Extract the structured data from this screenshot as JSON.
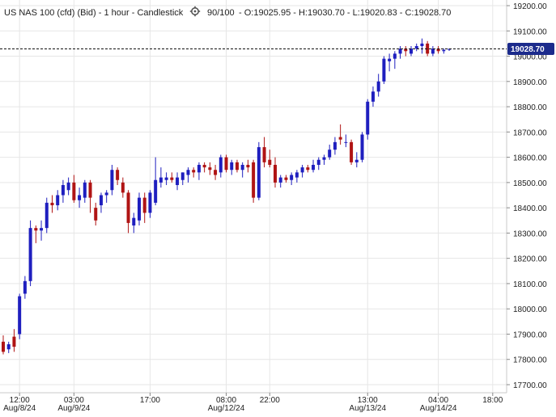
{
  "header": {
    "instrument": "US NAS 100 (cfd) (Bid) - 1 hour - Candlestick",
    "gear_icon": "gear-icon",
    "count": "90/100",
    "ohlc": "- O:19025.95 - H:19030.70 - L:19020.83 - C:19028.70"
  },
  "colors": {
    "up": "#1f1fbf",
    "down": "#b01414",
    "grid": "#e6e6e6",
    "price_tag_bg": "#1c2b8c"
  },
  "chart_data": {
    "type": "candlestick",
    "ylim": [
      17650,
      19225
    ],
    "yticks": [
      17700,
      17800,
      17900,
      18000,
      18100,
      18200,
      18300,
      18400,
      18500,
      18600,
      18700,
      18800,
      18900,
      19000,
      19100,
      19200
    ],
    "ytick_labels": [
      "17700.00",
      "17800.00",
      "17900.00",
      "18000.00",
      "18100.00",
      "18200.00",
      "18300.00",
      "18400.00",
      "18500.00",
      "18600.00",
      "18700.00",
      "18800.00",
      "18900.00",
      "19000.00",
      "19100.00",
      "19200.00"
    ],
    "xticks": [
      {
        "time": "12:00",
        "date": "Aug/8/24"
      },
      {
        "time": "03:00",
        "date": "Aug/9/24"
      },
      {
        "time": "17:00",
        "date": ""
      },
      {
        "time": "08:00",
        "date": "Aug/12/24"
      },
      {
        "time": "22:00",
        "date": ""
      },
      {
        "time": "13:00",
        "date": "Aug/13/24"
      },
      {
        "time": "04:00",
        "date": "Aug/14/24"
      },
      {
        "time": "18:00",
        "date": ""
      }
    ],
    "last_price": 19028.7,
    "last_price_label": "19028.70",
    "candles": [
      {
        "o": 17870,
        "h": 17895,
        "l": 17820,
        "c": 17830
      },
      {
        "o": 17840,
        "h": 17870,
        "l": 17825,
        "c": 17860
      },
      {
        "o": 17890,
        "h": 17920,
        "l": 17830,
        "c": 17850
      },
      {
        "o": 17900,
        "h": 18060,
        "l": 17880,
        "c": 18050
      },
      {
        "o": 18060,
        "h": 18130,
        "l": 18040,
        "c": 18110
      },
      {
        "o": 18110,
        "h": 18350,
        "l": 18090,
        "c": 18320
      },
      {
        "o": 18320,
        "h": 18330,
        "l": 18260,
        "c": 18310
      },
      {
        "o": 18310,
        "h": 18350,
        "l": 18270,
        "c": 18320
      },
      {
        "o": 18320,
        "h": 18440,
        "l": 18300,
        "c": 18420
      },
      {
        "o": 18420,
        "h": 18450,
        "l": 18380,
        "c": 18410
      },
      {
        "o": 18410,
        "h": 18470,
        "l": 18390,
        "c": 18450
      },
      {
        "o": 18450,
        "h": 18510,
        "l": 18420,
        "c": 18490
      },
      {
        "o": 18470,
        "h": 18520,
        "l": 18450,
        "c": 18500
      },
      {
        "o": 18500,
        "h": 18530,
        "l": 18420,
        "c": 18430
      },
      {
        "o": 18430,
        "h": 18480,
        "l": 18400,
        "c": 18450
      },
      {
        "o": 18440,
        "h": 18510,
        "l": 18420,
        "c": 18500
      },
      {
        "o": 18500,
        "h": 18510,
        "l": 18380,
        "c": 18440
      },
      {
        "o": 18400,
        "h": 18420,
        "l": 18330,
        "c": 18350
      },
      {
        "o": 18410,
        "h": 18460,
        "l": 18380,
        "c": 18450
      },
      {
        "o": 18450,
        "h": 18470,
        "l": 18420,
        "c": 18460
      },
      {
        "o": 18470,
        "h": 18570,
        "l": 18450,
        "c": 18550
      },
      {
        "o": 18550,
        "h": 18560,
        "l": 18490,
        "c": 18510
      },
      {
        "o": 18500,
        "h": 18520,
        "l": 18440,
        "c": 18460
      },
      {
        "o": 18460,
        "h": 18470,
        "l": 18300,
        "c": 18340
      },
      {
        "o": 18330,
        "h": 18380,
        "l": 18300,
        "c": 18360
      },
      {
        "o": 18350,
        "h": 18460,
        "l": 18330,
        "c": 18440
      },
      {
        "o": 18440,
        "h": 18460,
        "l": 18340,
        "c": 18380
      },
      {
        "o": 18380,
        "h": 18470,
        "l": 18360,
        "c": 18460
      },
      {
        "o": 18420,
        "h": 18600,
        "l": 18410,
        "c": 18510
      },
      {
        "o": 18500,
        "h": 18560,
        "l": 18480,
        "c": 18520
      },
      {
        "o": 18510,
        "h": 18540,
        "l": 18490,
        "c": 18520
      },
      {
        "o": 18520,
        "h": 18540,
        "l": 18500,
        "c": 18510
      },
      {
        "o": 18490,
        "h": 18540,
        "l": 18470,
        "c": 18520
      },
      {
        "o": 18510,
        "h": 18540,
        "l": 18490,
        "c": 18540
      },
      {
        "o": 18530,
        "h": 18560,
        "l": 18500,
        "c": 18550
      },
      {
        "o": 18550,
        "h": 18560,
        "l": 18520,
        "c": 18540
      },
      {
        "o": 18540,
        "h": 18580,
        "l": 18510,
        "c": 18570
      },
      {
        "o": 18570,
        "h": 18580,
        "l": 18540,
        "c": 18560
      },
      {
        "o": 18560,
        "h": 18580,
        "l": 18530,
        "c": 18550
      },
      {
        "o": 18550,
        "h": 18570,
        "l": 18510,
        "c": 18530
      },
      {
        "o": 18540,
        "h": 18610,
        "l": 18520,
        "c": 18600
      },
      {
        "o": 18600,
        "h": 18610,
        "l": 18540,
        "c": 18550
      },
      {
        "o": 18550,
        "h": 18590,
        "l": 18530,
        "c": 18580
      },
      {
        "o": 18580,
        "h": 18590,
        "l": 18540,
        "c": 18550
      },
      {
        "o": 18550,
        "h": 18580,
        "l": 18520,
        "c": 18570
      },
      {
        "o": 18570,
        "h": 18590,
        "l": 18540,
        "c": 18560
      },
      {
        "o": 18580,
        "h": 18590,
        "l": 18420,
        "c": 18440
      },
      {
        "o": 18440,
        "h": 18660,
        "l": 18430,
        "c": 18640
      },
      {
        "o": 18640,
        "h": 18680,
        "l": 18560,
        "c": 18580
      },
      {
        "o": 18590,
        "h": 18630,
        "l": 18560,
        "c": 18570
      },
      {
        "o": 18570,
        "h": 18600,
        "l": 18480,
        "c": 18500
      },
      {
        "o": 18500,
        "h": 18530,
        "l": 18480,
        "c": 18520
      },
      {
        "o": 18520,
        "h": 18530,
        "l": 18500,
        "c": 18510
      },
      {
        "o": 18510,
        "h": 18540,
        "l": 18490,
        "c": 18530
      },
      {
        "o": 18520,
        "h": 18550,
        "l": 18500,
        "c": 18540
      },
      {
        "o": 18540,
        "h": 18570,
        "l": 18520,
        "c": 18560
      },
      {
        "o": 18560,
        "h": 18570,
        "l": 18540,
        "c": 18550
      },
      {
        "o": 18550,
        "h": 18590,
        "l": 18540,
        "c": 18570
      },
      {
        "o": 18570,
        "h": 18600,
        "l": 18550,
        "c": 18590
      },
      {
        "o": 18590,
        "h": 18610,
        "l": 18570,
        "c": 18600
      },
      {
        "o": 18600,
        "h": 18650,
        "l": 18590,
        "c": 18630
      },
      {
        "o": 18630,
        "h": 18680,
        "l": 18610,
        "c": 18660
      },
      {
        "o": 18680,
        "h": 18730,
        "l": 18650,
        "c": 18670
      },
      {
        "o": 18660,
        "h": 18690,
        "l": 18640,
        "c": 18660
      },
      {
        "o": 18660,
        "h": 18670,
        "l": 18570,
        "c": 18580
      },
      {
        "o": 18580,
        "h": 18620,
        "l": 18560,
        "c": 18590
      },
      {
        "o": 18590,
        "h": 18700,
        "l": 18580,
        "c": 18690
      },
      {
        "o": 18690,
        "h": 18830,
        "l": 18670,
        "c": 18820
      },
      {
        "o": 18820,
        "h": 18880,
        "l": 18800,
        "c": 18860
      },
      {
        "o": 18860,
        "h": 18930,
        "l": 18840,
        "c": 18900
      },
      {
        "o": 18900,
        "h": 19000,
        "l": 18890,
        "c": 18990
      },
      {
        "o": 18980,
        "h": 19010,
        "l": 18940,
        "c": 18990
      },
      {
        "o": 18990,
        "h": 19020,
        "l": 18950,
        "c": 19010
      },
      {
        "o": 19010,
        "h": 19040,
        "l": 18990,
        "c": 19030
      },
      {
        "o": 19030,
        "h": 19040,
        "l": 19000,
        "c": 19020
      },
      {
        "o": 19010,
        "h": 19040,
        "l": 19000,
        "c": 19030
      },
      {
        "o": 19030,
        "h": 19050,
        "l": 19020,
        "c": 19040
      },
      {
        "o": 19040,
        "h": 19070,
        "l": 19010,
        "c": 19050
      },
      {
        "o": 19050,
        "h": 19060,
        "l": 19000,
        "c": 19010
      },
      {
        "o": 19010,
        "h": 19040,
        "l": 19000,
        "c": 19030
      },
      {
        "o": 19030,
        "h": 19040,
        "l": 19010,
        "c": 19020
      },
      {
        "o": 19020,
        "h": 19030,
        "l": 19010,
        "c": 19025
      },
      {
        "o": 19025.95,
        "h": 19030.7,
        "l": 19020.83,
        "c": 19028.7
      }
    ]
  }
}
